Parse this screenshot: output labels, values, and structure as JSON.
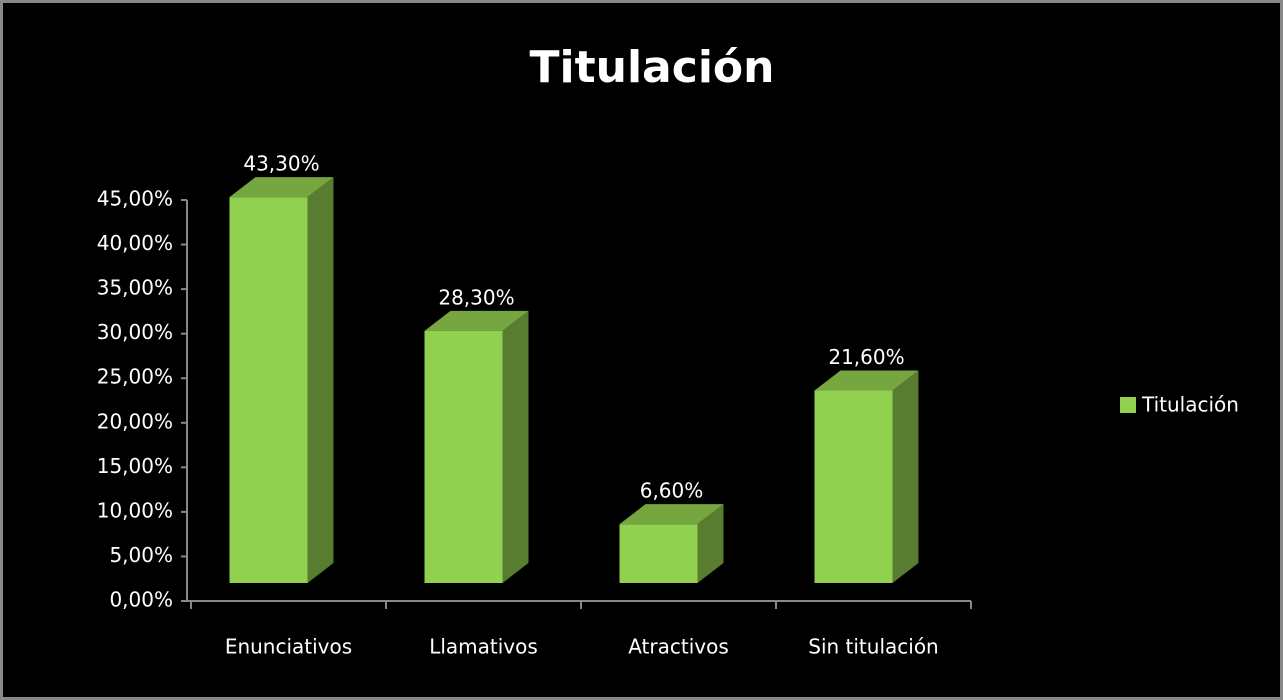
{
  "chart_data": {
    "type": "bar3d",
    "title": "Titulación",
    "categories": [
      "Enunciativos",
      "Llamativos",
      "Atractivos",
      "Sin titulación"
    ],
    "series": [
      {
        "name": "Titulación",
        "color": "#92d050",
        "values": [
          43.3,
          28.3,
          6.6,
          21.6
        ],
        "value_labels": [
          "43,30%",
          "28,30%",
          "6,60%",
          "21,60%"
        ]
      }
    ],
    "ylim": [
      0,
      45
    ],
    "yticks": [
      {
        "value": 0,
        "label": "0,00%"
      },
      {
        "value": 5,
        "label": "5,00%"
      },
      {
        "value": 10,
        "label": "10,00%"
      },
      {
        "value": 15,
        "label": "15,00%"
      },
      {
        "value": 20,
        "label": "20,00%"
      },
      {
        "value": 25,
        "label": "25,00%"
      },
      {
        "value": 30,
        "label": "30,00%"
      },
      {
        "value": 35,
        "label": "35,00%"
      },
      {
        "value": 40,
        "label": "40,00%"
      },
      {
        "value": 45,
        "label": "45,00%"
      }
    ],
    "legend": "right"
  }
}
